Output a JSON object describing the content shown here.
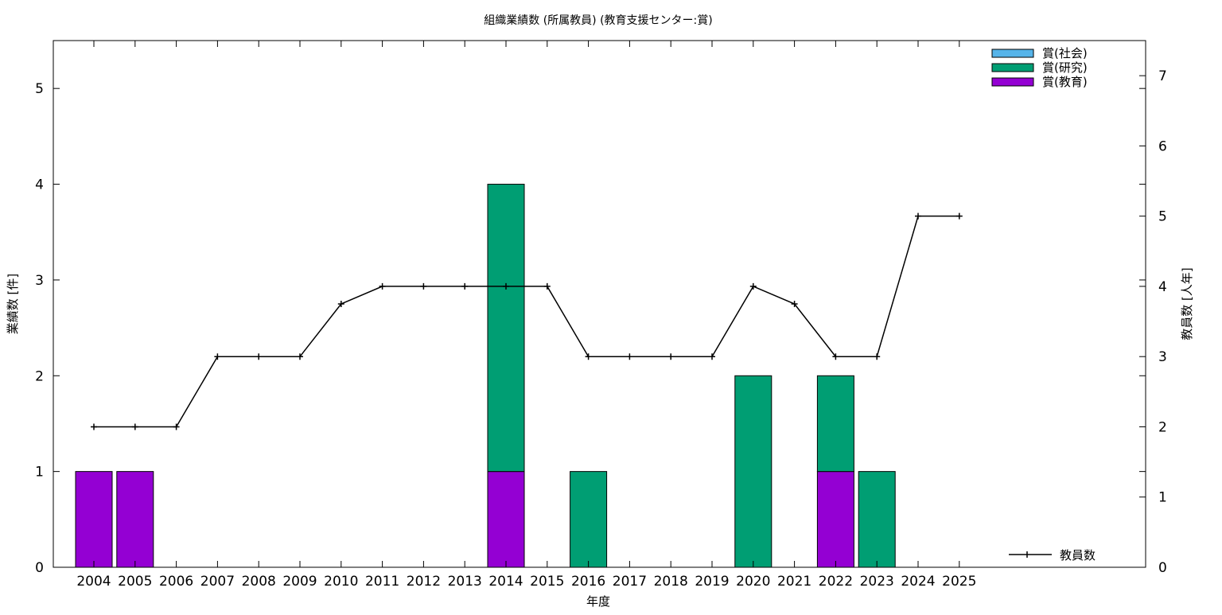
{
  "chart_data": {
    "type": "bar",
    "title": "組織業績数 (所属教員) (教育支援センター:賞)",
    "xlabel": "年度",
    "ylabel": "業績数 [件]",
    "y2label": "教員数 [人年]",
    "categories": [
      "2004",
      "2005",
      "2006",
      "2007",
      "2008",
      "2009",
      "2010",
      "2011",
      "2012",
      "2013",
      "2014",
      "2015",
      "2016",
      "2017",
      "2018",
      "2019",
      "2020",
      "2021",
      "2022",
      "2023",
      "2024",
      "2025"
    ],
    "ylim": [
      0,
      5.5
    ],
    "y2lim": [
      0,
      7.5
    ],
    "yticks": [
      "0",
      "1",
      "2",
      "3",
      "4",
      "5"
    ],
    "y2ticks": [
      "0",
      "1",
      "2",
      "3",
      "4",
      "5",
      "6",
      "7"
    ],
    "stacked": true,
    "grid": false,
    "legend_position": "top-right",
    "line_legend_position": "bottom-right",
    "series": [
      {
        "name": "賞(教育)",
        "kind": "bar",
        "color": "#9400d3",
        "values": [
          1,
          1,
          0,
          0,
          0,
          0,
          0,
          0,
          0,
          0,
          1,
          0,
          0,
          0,
          0,
          0,
          0,
          0,
          1,
          0,
          0,
          0
        ]
      },
      {
        "name": "賞(研究)",
        "kind": "bar",
        "color": "#009e73",
        "values": [
          0,
          0,
          0,
          0,
          0,
          0,
          0,
          0,
          0,
          0,
          3,
          0,
          1,
          0,
          0,
          0,
          2,
          0,
          1,
          1,
          0,
          0
        ]
      },
      {
        "name": "賞(社会)",
        "kind": "bar",
        "color": "#56b4e9",
        "values": [
          0,
          0,
          0,
          0,
          0,
          0,
          0,
          0,
          0,
          0,
          0,
          0,
          0,
          0,
          0,
          0,
          0,
          0,
          0,
          0,
          0,
          0
        ]
      },
      {
        "name": "教員数",
        "kind": "line",
        "axis": "y2",
        "color": "#000000",
        "values": [
          2,
          2,
          2,
          3,
          3,
          3,
          3.75,
          4,
          4,
          4,
          4,
          4,
          3,
          3,
          3,
          3,
          4,
          3.75,
          3,
          3,
          5,
          5
        ]
      }
    ],
    "legend_order": [
      "賞(社会)",
      "賞(研究)",
      "賞(教育)"
    ]
  }
}
